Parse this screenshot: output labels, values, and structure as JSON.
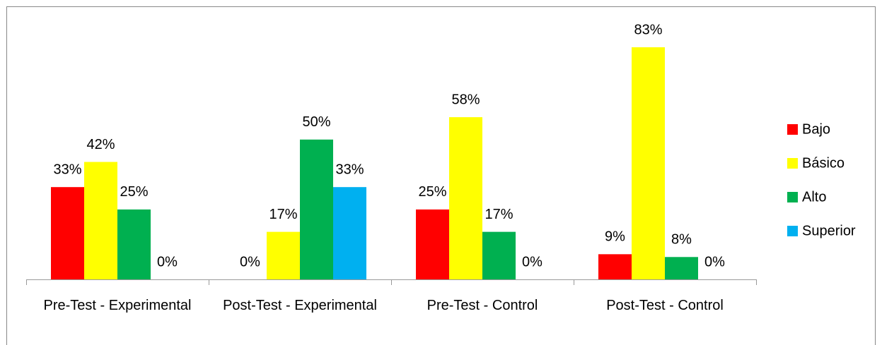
{
  "chart_data": {
    "type": "bar",
    "categories": [
      "Pre-Test - Experimental",
      "Post-Test - Experimental",
      "Pre-Test - Control",
      "Post-Test - Control"
    ],
    "series": [
      {
        "name": "Bajo",
        "color": "#ff0000",
        "values": [
          33,
          0,
          25,
          9
        ],
        "value_labels": [
          "33%",
          "0%",
          "25%",
          "9%"
        ]
      },
      {
        "name": "Básico",
        "color": "#ffff00",
        "values": [
          42,
          17,
          58,
          83
        ],
        "value_labels": [
          "42%",
          "17%",
          "58%",
          "83%"
        ]
      },
      {
        "name": "Alto",
        "color": "#00b050",
        "values": [
          25,
          50,
          17,
          8
        ],
        "value_labels": [
          "25%",
          "50%",
          "17%",
          "8%"
        ]
      },
      {
        "name": "Superior",
        "color": "#00b0f0",
        "values": [
          0,
          33,
          0,
          0
        ],
        "value_labels": [
          "0%",
          "33%",
          "0%",
          "0%"
        ]
      }
    ],
    "legend": "right"
  }
}
